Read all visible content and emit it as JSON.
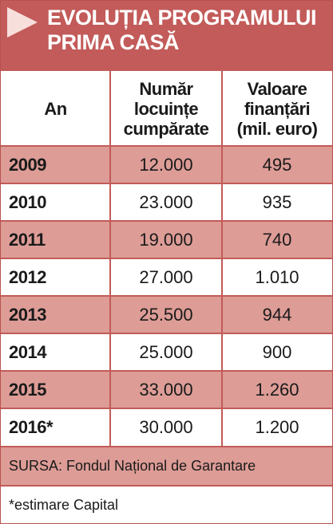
{
  "header": {
    "title_line1": "EVOLUȚIA PROGRAMULUI",
    "title_line2": "PRIMA CASĂ",
    "icon": "arrow-right-icon",
    "header_color": "#c25b59",
    "stripe_color": "#dd9c96"
  },
  "table": {
    "headers": {
      "year": "An",
      "homes": [
        "Număr",
        "locuințe",
        "cumpărate"
      ],
      "funding": [
        "Valoare",
        "finanțări",
        "(mil. euro)"
      ]
    },
    "rows": [
      {
        "year": "2009",
        "homes": "12.000",
        "funding": "495"
      },
      {
        "year": "2010",
        "homes": "23.000",
        "funding": "935"
      },
      {
        "year": "2011",
        "homes": "19.000",
        "funding": "740"
      },
      {
        "year": "2012",
        "homes": "27.000",
        "funding": "1.010"
      },
      {
        "year": "2013",
        "homes": "25.500",
        "funding": "944"
      },
      {
        "year": "2014",
        "homes": "25.000",
        "funding": "900"
      },
      {
        "year": "2015",
        "homes": "33.000",
        "funding": "1.260"
      },
      {
        "year": "2016*",
        "homes": "30.000",
        "funding": "1.200"
      }
    ]
  },
  "footer": {
    "source": "SURSA: Fondul Național de Garantare",
    "note": "*estimare Capital"
  }
}
